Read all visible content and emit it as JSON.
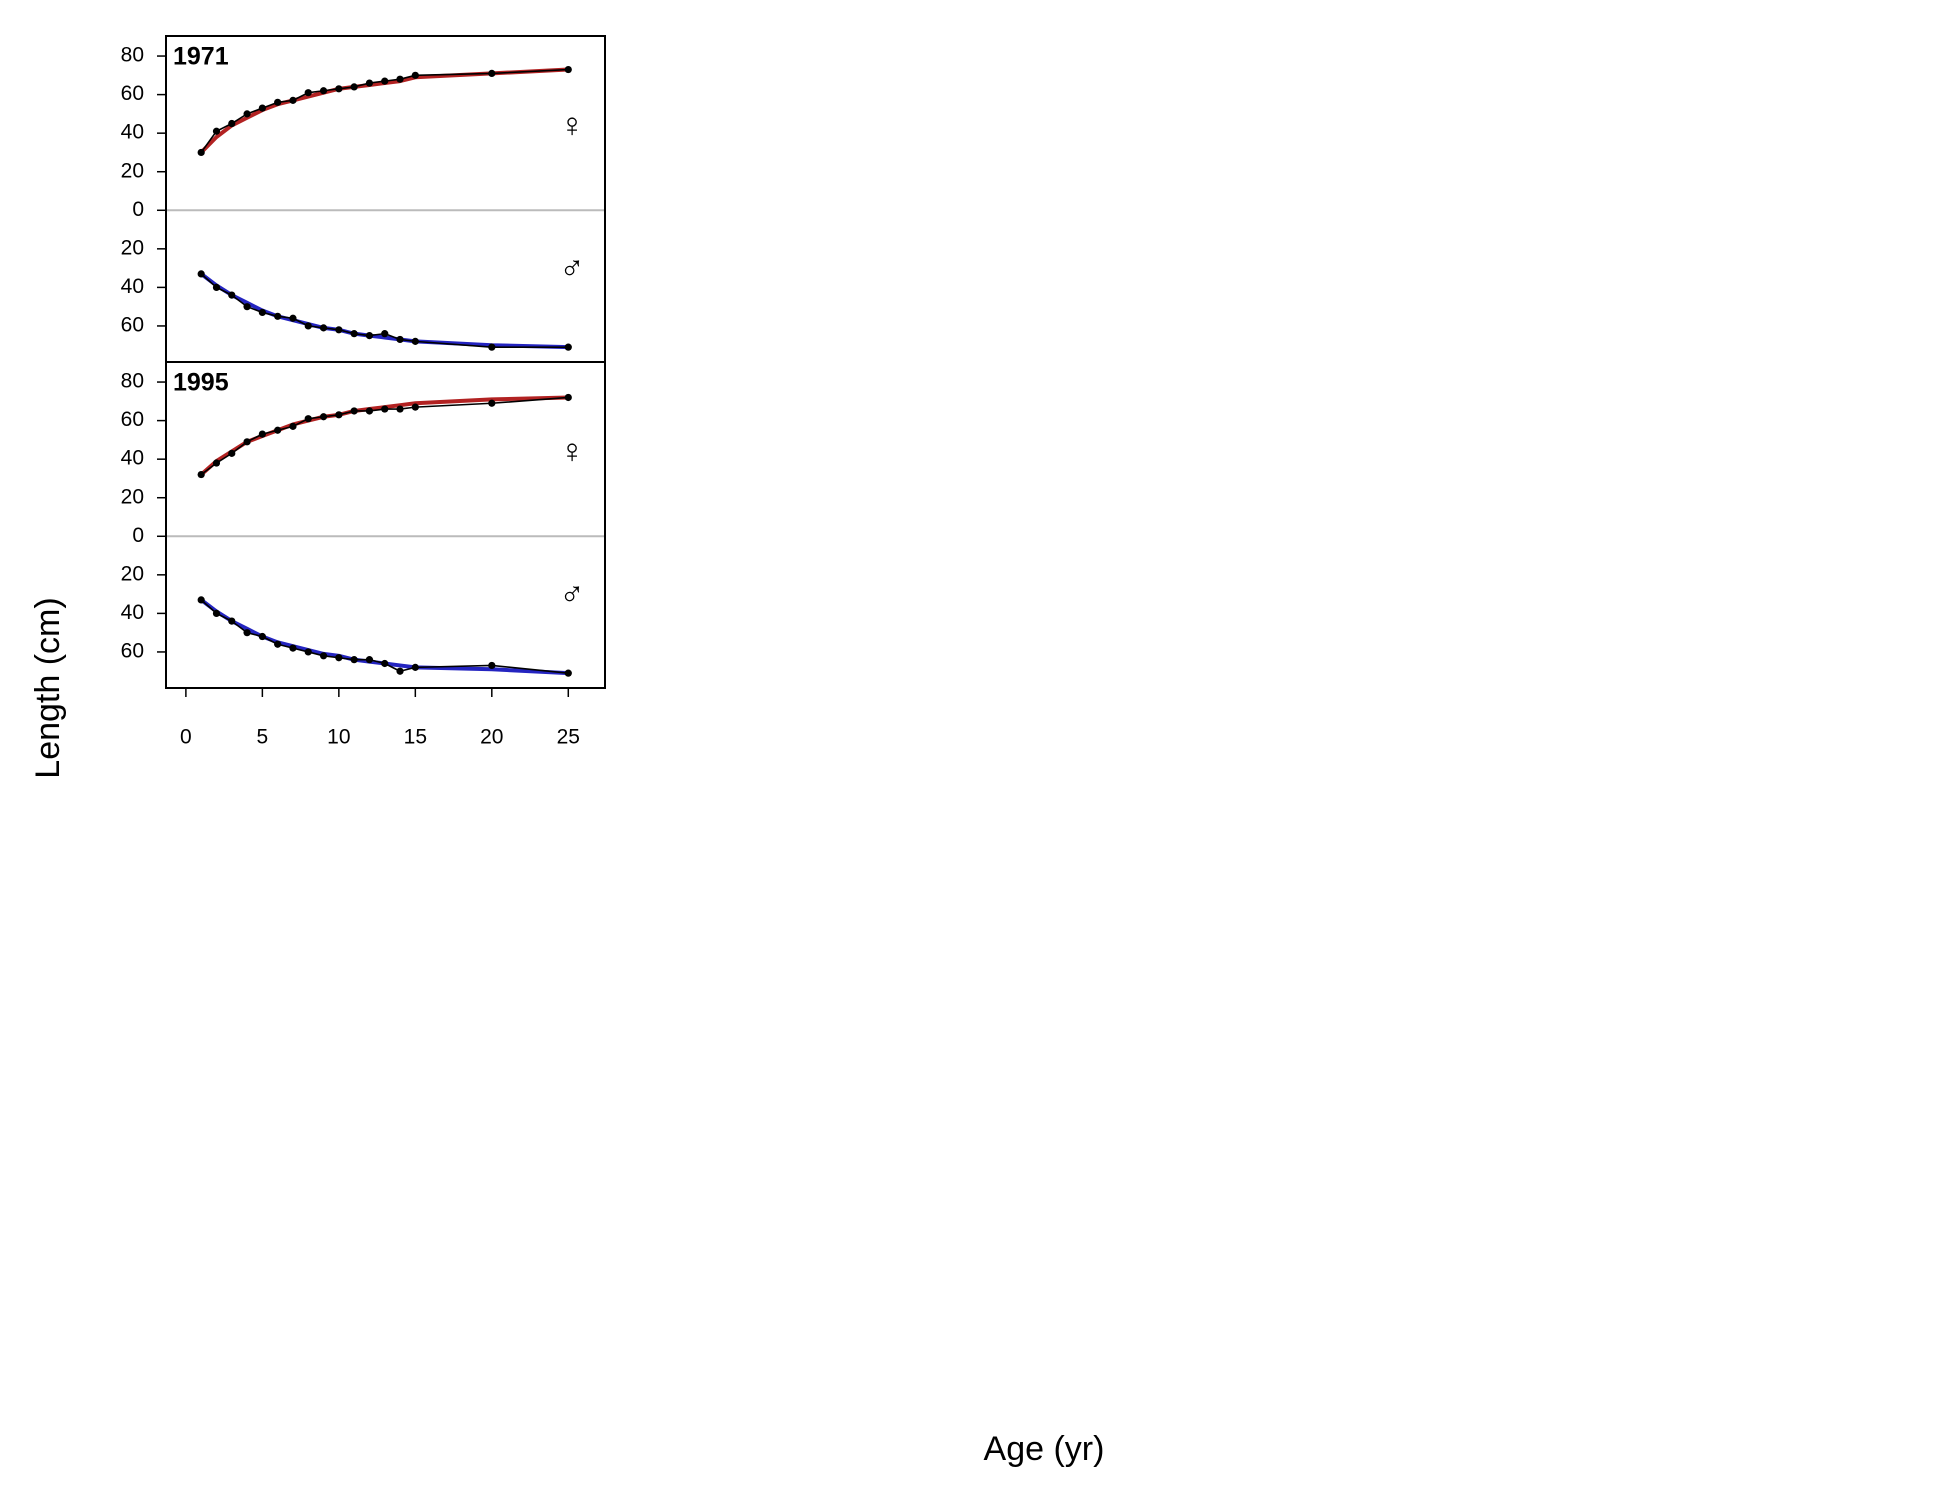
{
  "xlabel": "Age (yr)",
  "ylabel": "Length (cm)",
  "chart_data": [
    {
      "type": "line",
      "title": "1971",
      "x": [
        1,
        2,
        3,
        4,
        5,
        6,
        7,
        8,
        9,
        10,
        11,
        12,
        13,
        14,
        15,
        20,
        25
      ],
      "xlim": [
        -1.3,
        27.4
      ],
      "ylim": [
        -78.7,
        90.4
      ],
      "yticks": [
        80,
        60,
        40,
        20,
        0,
        {
          "value": -20,
          "label": "20"
        },
        {
          "value": -40,
          "label": "40"
        },
        {
          "value": -60,
          "label": "60"
        }
      ],
      "zero_line": true,
      "series": [
        {
          "color": "#b22222",
          "markers": false,
          "width": 4,
          "values": [
            30,
            38,
            44,
            48,
            52,
            55,
            57,
            59,
            61,
            63,
            64,
            65,
            66,
            67,
            69,
            71,
            73
          ]
        },
        {
          "color": "#000000",
          "markers": true,
          "width": 1.6,
          "values": [
            30,
            41,
            45,
            50,
            53,
            56,
            57,
            61,
            62,
            63,
            64,
            66,
            67,
            68,
            70,
            71,
            73
          ]
        },
        {
          "color": "#2424c0",
          "markers": false,
          "width": 4,
          "values": [
            -33,
            -39,
            -44,
            -48,
            -52,
            -55,
            -57,
            -59,
            -61,
            -62,
            -64,
            -65,
            -66,
            -67,
            -68,
            -70,
            -71
          ]
        },
        {
          "color": "#000000",
          "markers": true,
          "width": 1.6,
          "values": [
            -33,
            -40,
            -44,
            -50,
            -53,
            -55,
            -56,
            -60,
            -61,
            -62,
            -64,
            -65,
            -64,
            -67,
            -68,
            -71,
            -71
          ]
        }
      ],
      "annotations": [
        {
          "text": "♀",
          "color": "#e05050"
        },
        {
          "text": "♂",
          "color": "#4a4ae0"
        }
      ]
    },
    {
      "type": "line",
      "title": "1995",
      "x": [
        1,
        2,
        3,
        4,
        5,
        6,
        7,
        8,
        9,
        10,
        11,
        12,
        13,
        14,
        15,
        20,
        25
      ],
      "xlim": [
        -1.3,
        27.4
      ],
      "ylim": [
        -78.7,
        90.4
      ],
      "xticks": [
        0,
        5,
        10,
        15,
        20,
        25
      ],
      "yticks": [
        80,
        60,
        40,
        20,
        0,
        {
          "value": -20,
          "label": "20"
        },
        {
          "value": -40,
          "label": "40"
        },
        {
          "value": -60,
          "label": "60"
        }
      ],
      "zero_line": true,
      "series": [
        {
          "color": "#b22222",
          "markers": false,
          "width": 4,
          "values": [
            32,
            39,
            44,
            49,
            52,
            55,
            58,
            60,
            62,
            63,
            65,
            66,
            67,
            68,
            69,
            71,
            72
          ]
        },
        {
          "color": "#000000",
          "markers": true,
          "width": 1.6,
          "values": [
            32,
            38,
            43,
            49,
            53,
            55,
            57,
            61,
            62,
            63,
            65,
            65,
            66,
            66,
            67,
            69,
            72
          ]
        },
        {
          "color": "#2424c0",
          "markers": false,
          "width": 4,
          "values": [
            -33,
            -39,
            -44,
            -48,
            -52,
            -55,
            -57,
            -59,
            -61,
            -62,
            -64,
            -65,
            -66,
            -67,
            -68,
            -69,
            -71
          ]
        },
        {
          "color": "#000000",
          "markers": true,
          "width": 1.6,
          "values": [
            -33,
            -40,
            -44,
            -50,
            -52,
            -56,
            -58,
            -60,
            -62,
            -63,
            -64,
            -64,
            -66,
            -70,
            -68,
            -67,
            -71
          ]
        }
      ],
      "annotations": [
        {
          "text": "♀",
          "color": "#e05050"
        },
        {
          "text": "♂",
          "color": "#4a4ae0"
        }
      ]
    }
  ]
}
